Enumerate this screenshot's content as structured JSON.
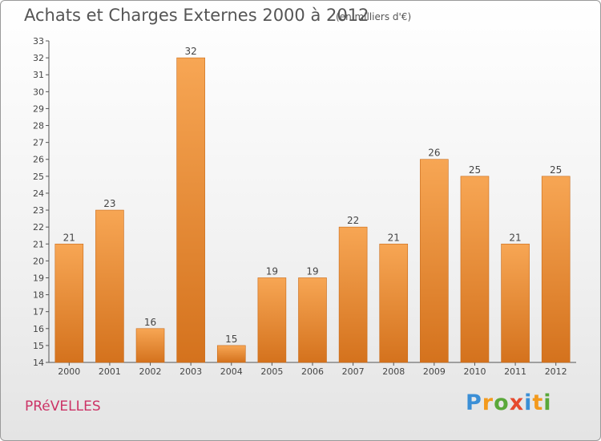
{
  "header": {
    "title": "Achats et Charges Externes 2000 à 2012",
    "unit": "(en milliers d'€)"
  },
  "footer": {
    "commune": "PRéVELLES",
    "brand_letters": [
      {
        "ch": "P",
        "color": "#3b8fd6"
      },
      {
        "ch": "r",
        "color": "#f39a1d"
      },
      {
        "ch": "o",
        "color": "#5aa83a"
      },
      {
        "ch": "x",
        "color": "#e64a2e"
      },
      {
        "ch": "i",
        "color": "#3b8fd6"
      },
      {
        "ch": "t",
        "color": "#f39a1d"
      },
      {
        "ch": "i",
        "color": "#5aa83a"
      }
    ]
  },
  "chart_data": {
    "type": "bar",
    "categories": [
      "2000",
      "2001",
      "2002",
      "2003",
      "2004",
      "2005",
      "2006",
      "2007",
      "2008",
      "2009",
      "2010",
      "2011",
      "2012"
    ],
    "values": [
      21,
      23,
      16,
      32,
      15,
      19,
      19,
      22,
      21,
      26,
      25,
      21,
      25
    ],
    "title": "Achats et Charges Externes 2000 à 2012",
    "ylabel": "",
    "xlabel": "",
    "ylim": [
      14,
      33
    ],
    "ytick_step": 1,
    "grid": false,
    "bar_color_top": "#f7a654",
    "bar_color_bottom": "#d4721d",
    "data_labels": true
  }
}
